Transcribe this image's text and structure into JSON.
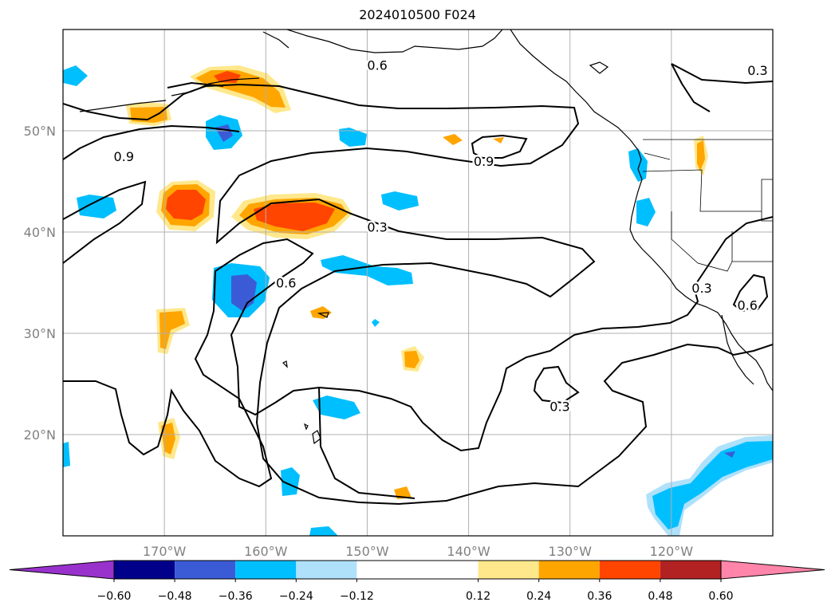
{
  "title": "2024010500 F024",
  "map": {
    "lon_range": [
      -180,
      -110
    ],
    "lat_range": [
      10,
      60
    ],
    "lat_ticks": [
      {
        "value": 20,
        "label": "20°N"
      },
      {
        "value": 30,
        "label": "30°N"
      },
      {
        "value": 40,
        "label": "40°N"
      },
      {
        "value": 50,
        "label": "50°N"
      }
    ],
    "lon_ticks": [
      {
        "value": -170,
        "label": "170°W"
      },
      {
        "value": -160,
        "label": "160°W"
      },
      {
        "value": -150,
        "label": "150°W"
      },
      {
        "value": -140,
        "label": "140°W"
      },
      {
        "value": -130,
        "label": "130°W"
      },
      {
        "value": -120,
        "label": "120°W"
      }
    ],
    "grid": true,
    "contour_labels": [
      {
        "text": "0.6",
        "lon": -149.0,
        "lat": 56.5
      },
      {
        "text": "0.3",
        "lon": -111.5,
        "lat": 56.0
      },
      {
        "text": "0.9",
        "lon": -174.0,
        "lat": 47.5
      },
      {
        "text": "0.9",
        "lon": -138.5,
        "lat": 47.0
      },
      {
        "text": "0.3",
        "lon": -149.0,
        "lat": 40.5
      },
      {
        "text": "0.6",
        "lon": -158.0,
        "lat": 35.0
      },
      {
        "text": "0.3",
        "lon": -117.0,
        "lat": 34.5
      },
      {
        "text": "0.6",
        "lon": -112.5,
        "lat": 32.8
      },
      {
        "text": "0.3",
        "lon": -131.0,
        "lat": 22.8
      }
    ]
  },
  "colorbar": {
    "colors": [
      "#9932cc",
      "#00008b",
      "#3b5bd6",
      "#00bfff",
      "#afe1fa",
      "#ffffff",
      "#ffe88c",
      "#ffa500",
      "#ff4500",
      "#b22222",
      "#ff85aa"
    ],
    "tick_values": [
      -0.6,
      -0.48,
      -0.36,
      -0.24,
      -0.12,
      0.12,
      0.24,
      0.36,
      0.48,
      0.6
    ],
    "tick_labels": [
      "−0.60",
      "−0.48",
      "−0.36",
      "−0.24",
      "−0.12",
      "0.12",
      "0.24",
      "0.36",
      "0.48",
      "0.60"
    ]
  }
}
